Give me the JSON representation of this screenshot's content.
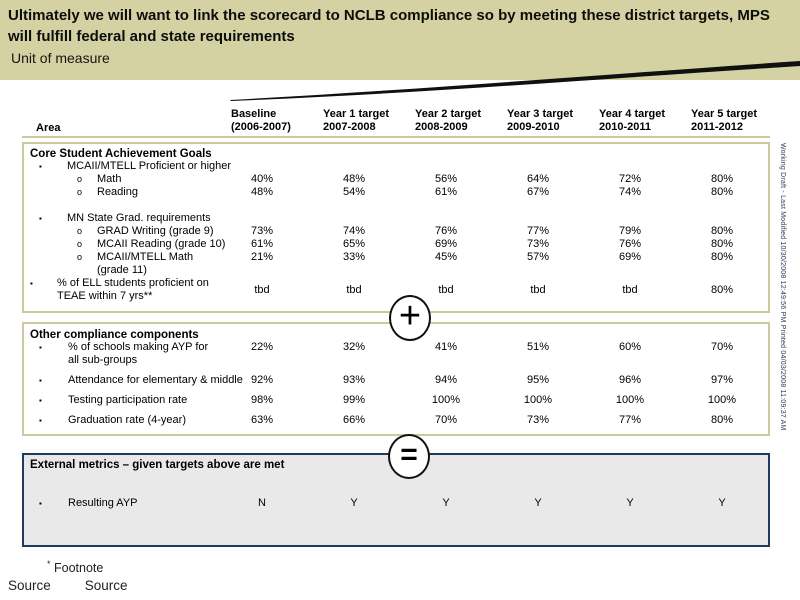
{
  "slide": {
    "title": "Ultimately we will want to link the scorecard to NCLB compliance so by meeting these district targets, MPS will fulfill federal and state requirements",
    "unit_label": "Unit of measure",
    "watermark": "Working Draft - Last Modified 10/30/2008 12:49:56 PM Printed 04/03/2008 11:09:37 AM",
    "footnote_marker": "*",
    "footnote": "Footnote",
    "source_label": "Source",
    "source_value": "Source"
  },
  "colors": {
    "band": "#d4d1a3",
    "tan_border": "#cdc99e",
    "navy_border": "#1e3a5f",
    "gray_fill": "#e9e9e9"
  },
  "bullets": {
    "level1": "▪",
    "level2": "o"
  },
  "table": {
    "area_header": "Area",
    "columns": [
      {
        "l1": "Baseline",
        "l2": "(2006-2007)"
      },
      {
        "l1": "Year 1 target",
        "l2": "2007-2008"
      },
      {
        "l1": "Year 2 target",
        "l2": "2008-2009"
      },
      {
        "l1": "Year 3 target",
        "l2": "2009-2010"
      },
      {
        "l1": "Year 4 target",
        "l2": "2010-2011"
      },
      {
        "l1": "Year 5 target",
        "l2": "2011-2012"
      }
    ],
    "sections": [
      {
        "id": "core",
        "title": "Core Student Achievement Goals",
        "rows": [
          {
            "type": "group",
            "label": "MCAII/MTELL Proficient or higher"
          },
          {
            "type": "sub",
            "label": "Math",
            "values": [
              "40%",
              "48%",
              "56%",
              "64%",
              "72%",
              "80%"
            ]
          },
          {
            "type": "sub",
            "label": "Reading",
            "values": [
              "48%",
              "54%",
              "61%",
              "67%",
              "74%",
              "80%"
            ],
            "gap_after": true
          },
          {
            "type": "group",
            "label": "MN State Grad. requirements"
          },
          {
            "type": "sub",
            "label": "GRAD Writing (grade 9)",
            "values": [
              "73%",
              "74%",
              "76%",
              "77%",
              "79%",
              "80%"
            ]
          },
          {
            "type": "sub",
            "label": "MCAII Reading (grade 10)",
            "values": [
              "61%",
              "65%",
              "69%",
              "73%",
              "76%",
              "80%"
            ]
          },
          {
            "type": "sub",
            "label": "MCAII/MTELL Math (grade 11)",
            "values": [
              "21%",
              "33%",
              "45%",
              "57%",
              "69%",
              "80%"
            ],
            "wrap": 135,
            "valign": "top"
          },
          {
            "type": "bullet0",
            "label": "% of ELL students proficient on TEAE within 7 yrs**",
            "values": [
              "tbd",
              "tbd",
              "tbd",
              "tbd",
              "tbd",
              "80%"
            ],
            "wrap": 165
          }
        ]
      },
      {
        "id": "other",
        "title": "Other compliance components",
        "rows": [
          {
            "type": "row",
            "label": "% of schools making AYP for all sub-groups",
            "values": [
              "22%",
              "32%",
              "41%",
              "51%",
              "60%",
              "70%"
            ],
            "wrap": 150,
            "valign": "top"
          },
          {
            "type": "row",
            "label": "Attendance for elementary & middle",
            "values": [
              "92%",
              "93%",
              "94%",
              "95%",
              "96%",
              "97%"
            ]
          },
          {
            "type": "row",
            "label": "Testing participation rate",
            "values": [
              "98%",
              "99%",
              "100%",
              "100%",
              "100%",
              "100%"
            ]
          },
          {
            "type": "row",
            "label": "Graduation rate (4-year)",
            "values": [
              "63%",
              "66%",
              "70%",
              "73%",
              "77%",
              "80%"
            ]
          }
        ]
      },
      {
        "id": "external",
        "title": "External metrics – given targets above are met",
        "rows": [
          {
            "type": "row",
            "label": "Resulting AYP",
            "values": [
              "N",
              "Y",
              "Y",
              "Y",
              "Y",
              "Y"
            ]
          }
        ]
      }
    ],
    "operators": [
      {
        "symbol": "+",
        "name": "plus-operator"
      },
      {
        "symbol": "=",
        "name": "equals-operator"
      }
    ]
  }
}
